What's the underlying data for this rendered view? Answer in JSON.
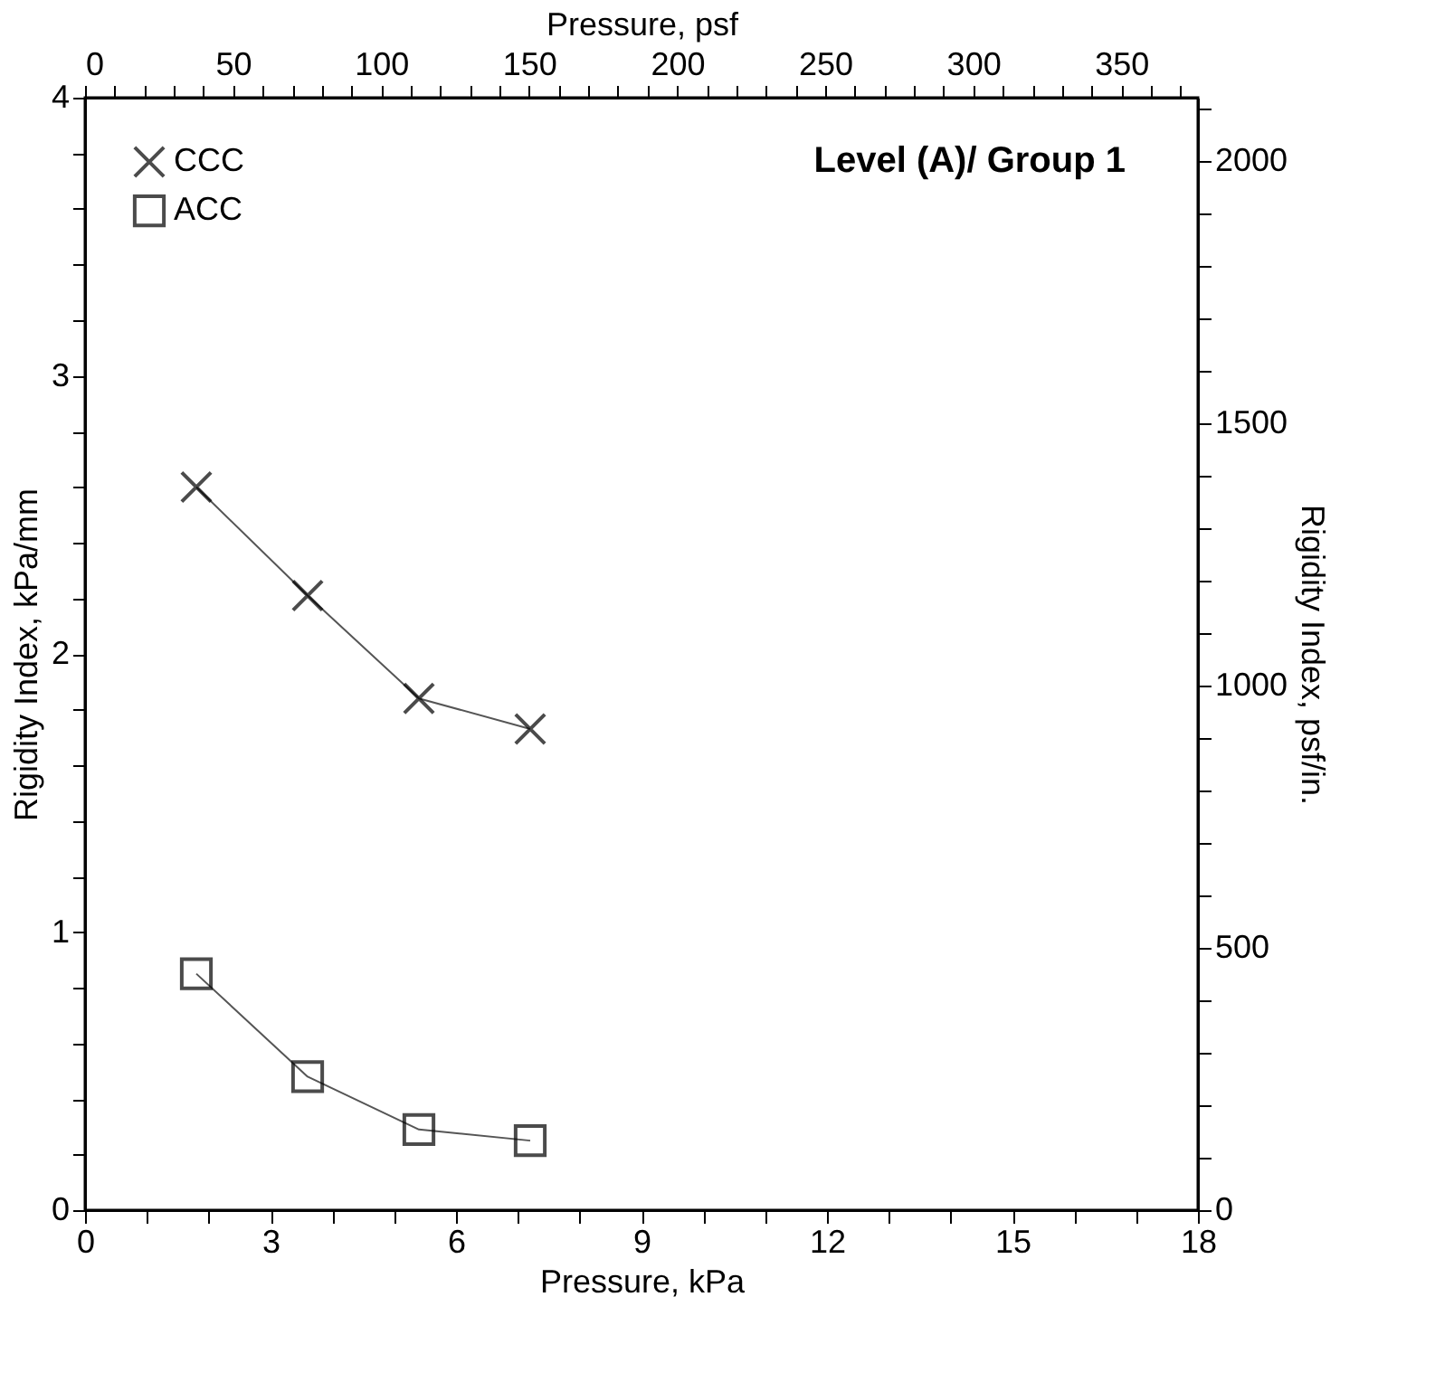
{
  "chart_data": {
    "type": "line",
    "title": "Level (A)/ Group 1",
    "xlabel": "Pressure, kPa",
    "ylabel": "Rigidity Index, kPa/mm",
    "y2label": "Rigidity Index, psf/in.",
    "x2label": "Pressure, psf",
    "x": [
      1.8,
      3.6,
      5.4,
      7.2
    ],
    "series": [
      {
        "name": "CCC",
        "color": "#000000",
        "marker": "cross",
        "values": [
          2.6,
          2.21,
          1.84,
          1.73
        ]
      },
      {
        "name": "ACC",
        "color": "#000000",
        "marker": "square",
        "values": [
          0.85,
          0.48,
          0.29,
          0.25
        ]
      }
    ],
    "xlim": [
      0,
      18
    ],
    "ylim": [
      0,
      4
    ],
    "y2lim": [
      0,
      2121.6
    ],
    "x2lim": [
      0,
      375.9
    ],
    "xticks": [
      0,
      {
        "value": 1,
        "label": null
      },
      {
        "value": 2,
        "label": null
      },
      3,
      {
        "value": 4,
        "label": null
      },
      {
        "value": 5,
        "label": null
      },
      6,
      {
        "value": 7,
        "label": null
      },
      {
        "value": 8,
        "label": null
      },
      9,
      {
        "value": 10,
        "label": null
      },
      {
        "value": 11,
        "label": null
      },
      12,
      {
        "value": 13,
        "label": null
      },
      {
        "value": 14,
        "label": null
      },
      15,
      {
        "value": 16,
        "label": null
      },
      {
        "value": 17,
        "label": null
      },
      18
    ],
    "yticks": [
      0,
      {
        "value": 0.2,
        "label": null
      },
      {
        "value": 0.4,
        "label": null
      },
      {
        "value": 0.6,
        "label": null
      },
      {
        "value": 0.8,
        "label": null
      },
      1,
      {
        "value": 1.2,
        "label": null
      },
      {
        "value": 1.4,
        "label": null
      },
      {
        "value": 1.6,
        "label": null
      },
      {
        "value": 1.8,
        "label": null
      },
      2,
      {
        "value": 2.2,
        "label": null
      },
      {
        "value": 2.4,
        "label": null
      },
      {
        "value": 2.6,
        "label": null
      },
      {
        "value": 2.8,
        "label": null
      },
      3,
      {
        "value": 3.2,
        "label": null
      },
      {
        "value": 3.4,
        "label": null
      },
      {
        "value": 3.6,
        "label": null
      },
      {
        "value": 3.8,
        "label": null
      },
      4
    ],
    "y2ticks": [
      0,
      {
        "value": 100,
        "label": null
      },
      {
        "value": 200,
        "label": null
      },
      {
        "value": 300,
        "label": null
      },
      {
        "value": 400,
        "label": null
      },
      500,
      {
        "value": 600,
        "label": null
      },
      {
        "value": 700,
        "label": null
      },
      {
        "value": 800,
        "label": null
      },
      {
        "value": 900,
        "label": null
      },
      1000,
      {
        "value": 1100,
        "label": null
      },
      {
        "value": 1200,
        "label": null
      },
      {
        "value": 1300,
        "label": null
      },
      {
        "value": 1400,
        "label": null
      },
      1500,
      {
        "value": 1600,
        "label": null
      },
      {
        "value": 1700,
        "label": null
      },
      {
        "value": 1800,
        "label": null
      },
      {
        "value": 1900,
        "label": null
      },
      2000,
      {
        "value": 2100,
        "label": null
      }
    ],
    "x2ticks": [
      0,
      {
        "value": 10,
        "label": null
      },
      {
        "value": 20,
        "label": null
      },
      {
        "value": 30,
        "label": null
      },
      {
        "value": 40,
        "label": null
      },
      50,
      {
        "value": 60,
        "label": null
      },
      {
        "value": 70,
        "label": null
      },
      {
        "value": 80,
        "label": null
      },
      {
        "value": 90,
        "label": null
      },
      100,
      {
        "value": 110,
        "label": null
      },
      {
        "value": 120,
        "label": null
      },
      {
        "value": 130,
        "label": null
      },
      {
        "value": 140,
        "label": null
      },
      150,
      {
        "value": 160,
        "label": null
      },
      {
        "value": 170,
        "label": null
      },
      {
        "value": 180,
        "label": null
      },
      {
        "value": 190,
        "label": null
      },
      200,
      {
        "value": 210,
        "label": null
      },
      {
        "value": 220,
        "label": null
      },
      {
        "value": 230,
        "label": null
      },
      {
        "value": 240,
        "label": null
      },
      250,
      {
        "value": 260,
        "label": null
      },
      {
        "value": 270,
        "label": null
      },
      {
        "value": 280,
        "label": null
      },
      {
        "value": 290,
        "label": null
      },
      300,
      {
        "value": 310,
        "label": null
      },
      {
        "value": 320,
        "label": null
      },
      {
        "value": 330,
        "label": null
      },
      {
        "value": 340,
        "label": null
      },
      350,
      {
        "value": 360,
        "label": null
      },
      {
        "value": 370,
        "label": null
      }
    ],
    "grid": false,
    "legend": "top left",
    "line_style": "solid"
  }
}
